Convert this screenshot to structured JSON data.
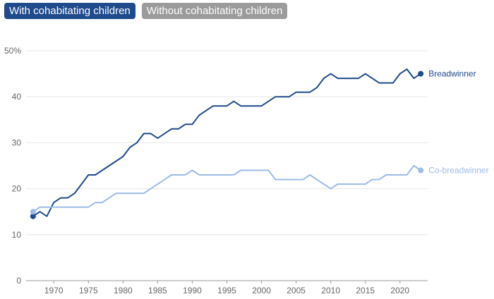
{
  "tabs": [
    {
      "label": "With cohabitating children",
      "active": true
    },
    {
      "label": "Without cohabitating children",
      "active": false
    }
  ],
  "colors": {
    "tab_active": "#1f4a8c",
    "tab_inactive": "#9b9b9b",
    "grid": "#e6e6e6",
    "axis": "#999999"
  },
  "chart_data": {
    "type": "line",
    "xlim": [
      1966,
      2024
    ],
    "ylim": [
      0,
      50
    ],
    "x_ticks": [
      1970,
      1975,
      1980,
      1985,
      1990,
      1995,
      2000,
      2005,
      2010,
      2015,
      2020
    ],
    "y_ticks": [
      {
        "value": 0,
        "label": "0"
      },
      {
        "value": 10,
        "label": "10"
      },
      {
        "value": 20,
        "label": "20"
      },
      {
        "value": 30,
        "label": "30"
      },
      {
        "value": 40,
        "label": "40"
      },
      {
        "value": 50,
        "label": "50%"
      }
    ],
    "grid": true,
    "x": [
      1967,
      1968,
      1969,
      1970,
      1971,
      1972,
      1973,
      1974,
      1975,
      1976,
      1977,
      1978,
      1979,
      1980,
      1981,
      1982,
      1983,
      1984,
      1985,
      1986,
      1987,
      1988,
      1989,
      1990,
      1991,
      1992,
      1993,
      1994,
      1995,
      1996,
      1997,
      1998,
      1999,
      2000,
      2001,
      2002,
      2003,
      2004,
      2005,
      2006,
      2007,
      2008,
      2009,
      2010,
      2011,
      2012,
      2013,
      2014,
      2015,
      2016,
      2017,
      2018,
      2019,
      2020,
      2021,
      2022,
      2023
    ],
    "series": [
      {
        "name": "Breadwinner",
        "color": "#1f4a8c",
        "values": [
          14,
          15,
          14,
          17,
          18,
          18,
          19,
          21,
          23,
          23,
          24,
          25,
          26,
          27,
          29,
          30,
          32,
          32,
          31,
          32,
          33,
          33,
          34,
          34,
          36,
          37,
          38,
          38,
          38,
          39,
          38,
          38,
          38,
          38,
          39,
          40,
          40,
          40,
          41,
          41,
          41,
          42,
          44,
          45,
          44,
          44,
          44,
          44,
          45,
          44,
          43,
          43,
          43,
          45,
          46,
          44,
          45
        ]
      },
      {
        "name": "Co-breadwinner",
        "color": "#9dbbe6",
        "values": [
          15,
          16,
          16,
          16,
          16,
          16,
          16,
          16,
          16,
          17,
          17,
          18,
          19,
          19,
          19,
          19,
          19,
          20,
          21,
          22,
          23,
          23,
          23,
          24,
          23,
          23,
          23,
          23,
          23,
          23,
          24,
          24,
          24,
          24,
          24,
          22,
          22,
          22,
          22,
          22,
          23,
          22,
          21,
          20,
          21,
          21,
          21,
          21,
          21,
          22,
          22,
          23,
          23,
          23,
          23,
          25,
          24
        ]
      }
    ]
  }
}
